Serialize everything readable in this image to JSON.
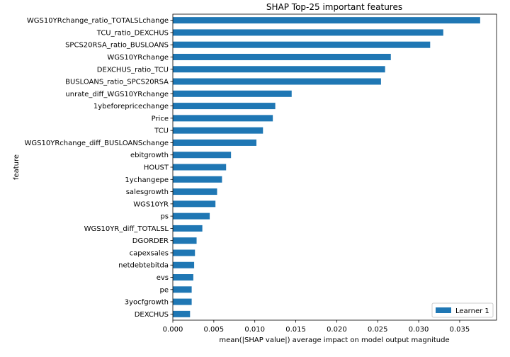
{
  "chart_data": {
    "type": "bar",
    "orientation": "horizontal",
    "title": "SHAP Top-25 important features",
    "xlabel": "mean(|SHAP value|) average impact on model output magnitude",
    "ylabel": "feature",
    "xlim": [
      0,
      0.0395
    ],
    "xticks": [
      0.0,
      0.005,
      0.01,
      0.015,
      0.02,
      0.025,
      0.03,
      0.035
    ],
    "xtick_labels": [
      "0.000",
      "0.005",
      "0.010",
      "0.015",
      "0.020",
      "0.025",
      "0.030",
      "0.035"
    ],
    "grid": false,
    "legend_position": "bottom-right",
    "series": [
      {
        "name": "Learner 1",
        "color": "#1f77b4",
        "values": [
          0.0375,
          0.033,
          0.0314,
          0.0266,
          0.0259,
          0.0254,
          0.0145,
          0.0125,
          0.0122,
          0.011,
          0.0102,
          0.0071,
          0.0065,
          0.006,
          0.0054,
          0.0052,
          0.0045,
          0.0036,
          0.0029,
          0.0027,
          0.0026,
          0.0025,
          0.0023,
          0.0023,
          0.0021
        ]
      }
    ],
    "categories": [
      "WGS10YRchange_ratio_TOTALSLchange",
      "TCU_ratio_DEXCHUS",
      "SPCS20RSA_ratio_BUSLOANS",
      "WGS10YRchange",
      "DEXCHUS_ratio_TCU",
      "BUSLOANS_ratio_SPCS20RSA",
      "unrate_diff_WGS10YRchange",
      "1ybeforepricechange",
      "Price",
      "TCU",
      "WGS10YRchange_diff_BUSLOANSchange",
      "ebitgrowth",
      "HOUST",
      "1ychangepe",
      "salesgrowth",
      "WGS10YR",
      "ps",
      "WGS10YR_diff_TOTALSL",
      "DGORDER",
      "capexsales",
      "netdebtebitda",
      "evs",
      "pe",
      "3yocfgrowth",
      "DEXCHUS"
    ]
  }
}
